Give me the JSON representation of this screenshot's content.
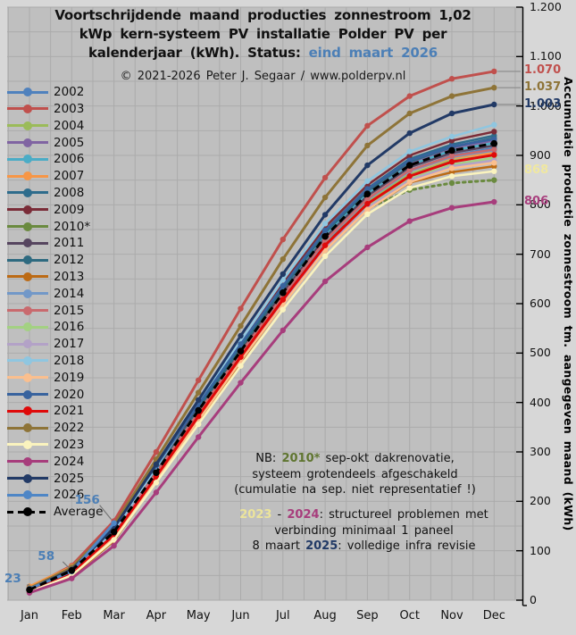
{
  "title": {
    "lines": [
      [
        {
          "t": "Voortschrijdende maand producties zonnestroom 1,02"
        }
      ],
      [
        {
          "t": "kWp kern-systeem PV installatie Polder PV per"
        }
      ],
      [
        {
          "t": "kalenderjaar (kWh). Status: "
        },
        {
          "t": "eind maart 2026",
          "c": "#4c7fb6"
        }
      ]
    ]
  },
  "copyright": "© 2021-2026 Peter J. Segaar / www.polderpv.nl",
  "y_axis": {
    "title": "Accumulatie productie zonnestroom tm. aangegeven maand (kWh)",
    "ticks": [
      {
        "label": "1.200",
        "value": 1200
      },
      {
        "label": "1.100",
        "value": 1100
      },
      {
        "label": "1.000",
        "value": 1000
      },
      {
        "label": "900",
        "value": 900
      },
      {
        "label": "800",
        "value": 800
      },
      {
        "label": "700",
        "value": 700
      },
      {
        "label": "600",
        "value": 600
      },
      {
        "label": "500",
        "value": 500
      },
      {
        "label": "400",
        "value": 400
      },
      {
        "label": "300",
        "value": 300
      },
      {
        "label": "200",
        "value": 200
      },
      {
        "label": "100",
        "value": 100
      },
      {
        "label": "0",
        "value": 0
      }
    ]
  },
  "annotations": {
    "block1": {
      "lines": [
        [
          {
            "t": "NB: "
          },
          {
            "t": "2010*",
            "c": "#5f7530",
            "b": true
          },
          {
            "t": " sep-okt dakrenovatie,"
          }
        ],
        [
          {
            "t": "systeem grotendeels afgeschakeld"
          }
        ],
        [
          {
            "t": "(cumulatie na sep. niet representatief !)"
          }
        ]
      ]
    },
    "block2": {
      "lines": [
        [
          {
            "t": "2023",
            "c": "#ece49b",
            "b": true
          },
          {
            "t": " - "
          },
          {
            "t": "2024",
            "c": "#a73d7c",
            "b": true
          },
          {
            "t": ": structureel problemen met"
          }
        ],
        [
          {
            "t": "verbinding minimaal 1 paneel"
          }
        ],
        [
          {
            "t": "8 maart "
          },
          {
            "t": "2025",
            "c": "#223a66",
            "b": true
          },
          {
            "t": ": volledige infra revisie"
          }
        ]
      ]
    }
  },
  "chart_data": {
    "type": "line",
    "x_categories": [
      "Jan",
      "Feb",
      "Mar",
      "Apr",
      "May",
      "Jun",
      "Jul",
      "Aug",
      "Sep",
      "Oct",
      "Nov",
      "Dec"
    ],
    "ylabel": "Accumulatie productie zonnestroom tm. aangegeven maand (kWh)",
    "ylim": [
      0,
      1200
    ],
    "grid": true,
    "legend_position": "left-overlay",
    "series": [
      {
        "name": "2002",
        "color": "#4f81bd",
        "values": [
          20,
          55,
          130,
          250,
          370,
          490,
          610,
          725,
          810,
          870,
          900,
          915
        ]
      },
      {
        "name": "2003",
        "color": "#c0504d",
        "width": 3,
        "values": [
          25,
          70,
          160,
          300,
          445,
          590,
          730,
          855,
          960,
          1020,
          1055,
          1070
        ]
      },
      {
        "name": "2004",
        "color": "#9bbb59",
        "values": [
          22,
          60,
          135,
          255,
          375,
          495,
          610,
          720,
          805,
          862,
          890,
          900
        ]
      },
      {
        "name": "2005",
        "color": "#8064a2",
        "values": [
          20,
          58,
          138,
          260,
          385,
          510,
          628,
          740,
          825,
          885,
          915,
          930
        ]
      },
      {
        "name": "2006",
        "color": "#4bacc6",
        "values": [
          18,
          52,
          128,
          252,
          378,
          500,
          622,
          738,
          822,
          880,
          910,
          925
        ]
      },
      {
        "name": "2007",
        "color": "#f79646",
        "values": [
          28,
          68,
          148,
          268,
          388,
          505,
          618,
          728,
          812,
          868,
          895,
          905
        ]
      },
      {
        "name": "2008",
        "color": "#2e6c8c",
        "values": [
          22,
          60,
          140,
          265,
          392,
          515,
          635,
          748,
          833,
          893,
          922,
          940
        ]
      },
      {
        "name": "2009",
        "color": "#7a2c38",
        "values": [
          20,
          58,
          142,
          268,
          396,
          520,
          640,
          755,
          840,
          900,
          930,
          948
        ]
      },
      {
        "name": "2010*",
        "color": "#6a8a3f",
        "dotted_from": 8,
        "values": [
          18,
          55,
          135,
          258,
          382,
          502,
          618,
          728,
          793,
          830,
          844,
          850
        ]
      },
      {
        "name": "2011",
        "color": "#56455f",
        "values": [
          24,
          64,
          144,
          264,
          386,
          506,
          622,
          734,
          818,
          876,
          905,
          920
        ]
      },
      {
        "name": "2012",
        "color": "#2e6a80",
        "values": [
          20,
          57,
          136,
          260,
          386,
          510,
          630,
          744,
          828,
          887,
          917,
          935
        ]
      },
      {
        "name": "2013",
        "color": "#bc6a14",
        "values": [
          16,
          48,
          120,
          240,
          362,
          482,
          598,
          708,
          790,
          845,
          866,
          878
        ]
      },
      {
        "name": "2014",
        "color": "#7298c8",
        "values": [
          21,
          58,
          134,
          254,
          376,
          498,
          615,
          726,
          810,
          868,
          897,
          910
        ]
      },
      {
        "name": "2015",
        "color": "#c96a6e",
        "values": [
          23,
          62,
          140,
          258,
          380,
          500,
          616,
          728,
          812,
          870,
          899,
          912
        ]
      },
      {
        "name": "2016",
        "color": "#a3d182",
        "values": [
          19,
          54,
          128,
          246,
          366,
          486,
          602,
          712,
          796,
          852,
          881,
          895
        ]
      },
      {
        "name": "2017",
        "color": "#b3a2c7",
        "values": [
          22,
          60,
          136,
          252,
          370,
          488,
          602,
          712,
          794,
          850,
          878,
          890
        ]
      },
      {
        "name": "2018",
        "color": "#8fc6e0",
        "values": [
          20,
          58,
          140,
          268,
          398,
          525,
          648,
          762,
          848,
          908,
          938,
          962
        ]
      },
      {
        "name": "2019",
        "color": "#fbbf8e",
        "values": [
          18,
          52,
          126,
          244,
          364,
          484,
          598,
          708,
          790,
          846,
          874,
          885
        ]
      },
      {
        "name": "2020",
        "color": "#38639e",
        "values": [
          24,
          66,
          150,
          272,
          396,
          518,
          636,
          748,
          832,
          890,
          918,
          933
        ]
      },
      {
        "name": "2021",
        "color": "#df0a0a",
        "width": 3,
        "values": [
          20,
          56,
          132,
          250,
          372,
          492,
          608,
          718,
          802,
          858,
          887,
          901
        ]
      },
      {
        "name": "2022",
        "color": "#8e7438",
        "width": 3,
        "values": [
          24,
          66,
          152,
          285,
          420,
          555,
          690,
          815,
          920,
          985,
          1020,
          1037
        ]
      },
      {
        "name": "2023",
        "color": "#faf3be",
        "values": [
          17,
          50,
          122,
          238,
          356,
          474,
          588,
          696,
          781,
          834,
          858,
          868
        ]
      },
      {
        "name": "2024",
        "color": "#a73d7c",
        "width": 3,
        "values": [
          15,
          44,
          110,
          218,
          330,
          440,
          546,
          645,
          714,
          767,
          794,
          806
        ]
      },
      {
        "name": "2025",
        "color": "#223a66",
        "width": 3,
        "values": [
          22,
          62,
          146,
          275,
          405,
          535,
          660,
          780,
          880,
          945,
          985,
          1003
        ]
      },
      {
        "name": "2026",
        "color": "#4e86c6",
        "width": 3,
        "values": [
          23,
          58,
          156
        ]
      },
      {
        "name": "Average",
        "color": "#000000",
        "dashed": true,
        "width": 3,
        "values": [
          21,
          60,
          138,
          258,
          384,
          504,
          622,
          736,
          822,
          880,
          910,
          924
        ]
      }
    ],
    "end_labels": [
      {
        "series": "2003",
        "text": "1.070",
        "color": "#c0504d",
        "leader": true
      },
      {
        "series": "2022",
        "text": "1.037",
        "color": "#8e7438",
        "leader": true
      },
      {
        "series": "2025",
        "text": "1.003",
        "color": "#223a66",
        "leader": true
      },
      {
        "series": "2023",
        "text": "868",
        "color": "#f0e8a0",
        "leader": false
      },
      {
        "series": "2024",
        "text": "806",
        "color": "#a73d7c",
        "leader": false
      }
    ],
    "point_labels": [
      {
        "series": "2026",
        "month": 0,
        "text": "23",
        "color": "#4c7fb6"
      },
      {
        "series": "2026",
        "month": 1,
        "text": "58",
        "color": "#4c7fb6"
      },
      {
        "series": "2026",
        "month": 2,
        "text": "156",
        "color": "#4c7fb6"
      }
    ]
  }
}
